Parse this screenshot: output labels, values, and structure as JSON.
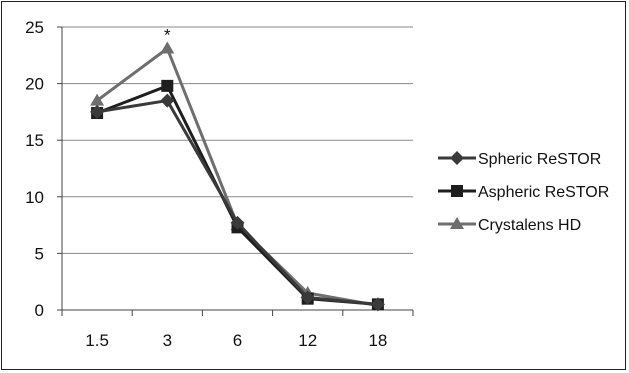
{
  "chart_data": {
    "type": "line",
    "categories": [
      "1.5",
      "3",
      "6",
      "12",
      "18"
    ],
    "series": [
      {
        "name": "Spheric ReSTOR",
        "values": [
          17.5,
          18.5,
          7.7,
          1.1,
          0.5
        ],
        "color": "#3a3a3a",
        "marker": "diamond"
      },
      {
        "name": "Aspheric ReSTOR",
        "values": [
          17.4,
          19.8,
          7.3,
          1.0,
          0.5
        ],
        "color": "#1e1e1e",
        "marker": "square"
      },
      {
        "name": "Crystalens HD",
        "values": [
          18.5,
          23.1,
          7.5,
          1.5,
          0.4
        ],
        "color": "#6e6e6e",
        "marker": "triangle"
      }
    ],
    "ylim": [
      0,
      25
    ],
    "yticks": [
      "0",
      "5",
      "10",
      "15",
      "20",
      "25"
    ],
    "grid": true,
    "legend": "right",
    "annotations": [
      {
        "text": "*",
        "category": "3",
        "value": 23.1
      }
    ]
  }
}
